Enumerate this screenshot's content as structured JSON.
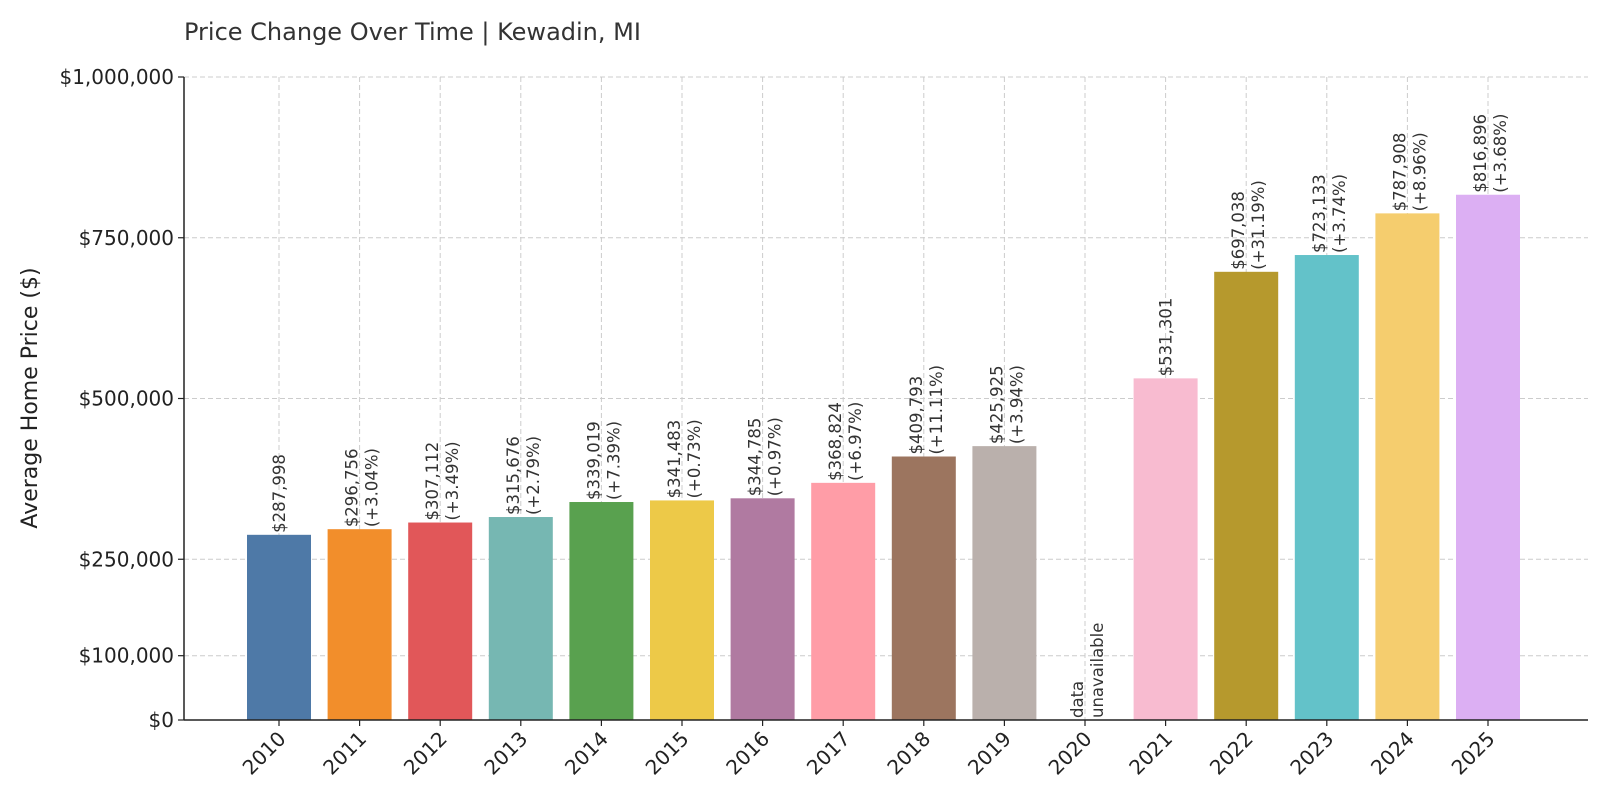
{
  "chart_data": {
    "type": "bar",
    "title": "Price Change Over Time | Kewadin, MI",
    "xlabel": "",
    "ylabel": "Average Home Price ($)",
    "ylim": [
      0,
      1000000
    ],
    "y_ticks": [
      0,
      100000,
      250000,
      500000,
      750000,
      1000000
    ],
    "y_tick_labels": [
      "$0",
      "$100,000",
      "$250,000",
      "$500,000",
      "$750,000",
      "$1,000,000"
    ],
    "grid": true,
    "categories": [
      "2010",
      "2011",
      "2012",
      "2013",
      "2014",
      "2015",
      "2016",
      "2017",
      "2018",
      "2019",
      "2020",
      "2021",
      "2022",
      "2023",
      "2024",
      "2025"
    ],
    "values": [
      287998,
      296756,
      307112,
      315676,
      339019,
      341483,
      344785,
      368824,
      409793,
      425925,
      null,
      531301,
      697038,
      723133,
      787908,
      816896
    ],
    "value_labels": [
      "$287,998",
      "$296,756",
      "$307,112",
      "$315,676",
      "$339,019",
      "$341,483",
      "$344,785",
      "$368,824",
      "$409,793",
      "$425,925",
      "data",
      "$531,301",
      "$697,038",
      "$723,133",
      "$787,908",
      "$816,896"
    ],
    "change_labels": [
      "",
      "(+3.04%)",
      "(+3.49%)",
      "(+2.79%)",
      "(+7.39%)",
      "(+0.73%)",
      "(+0.97%)",
      "(+6.97%)",
      "(+11.11%)",
      "(+3.94%)",
      "unavailable",
      "",
      "(+31.19%)",
      "(+3.74%)",
      "(+8.96%)",
      "(+3.68%)"
    ],
    "colors": [
      "#4e79a7",
      "#f28e2b",
      "#e15759",
      "#76b7b2",
      "#59a14f",
      "#edc948",
      "#b07aa1",
      "#ff9da7",
      "#9c755f",
      "#bab0ac",
      "#ffffff",
      "#f8bbd0",
      "#b6992d",
      "#63c2c9",
      "#f5cd6e",
      "#dcaff3"
    ]
  }
}
